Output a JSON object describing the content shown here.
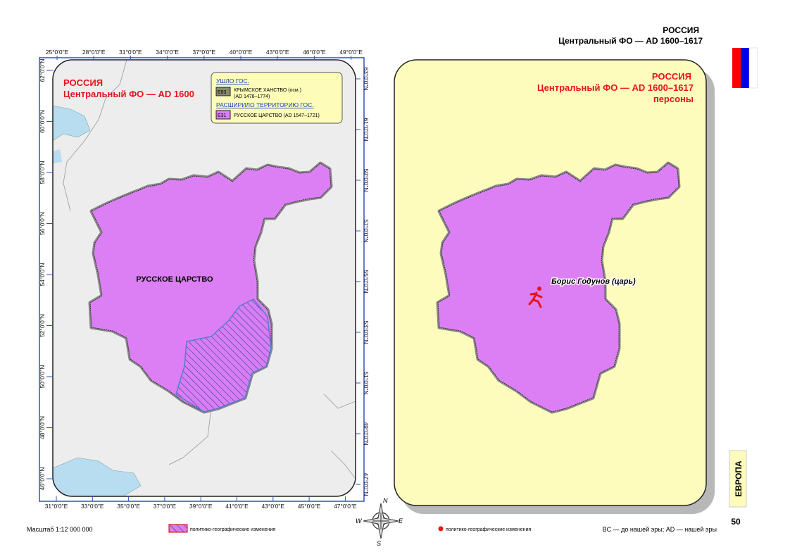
{
  "header": {
    "title": "РОССИЯ",
    "subtitle": "Центральный ФО — AD 1600–1617"
  },
  "left_map": {
    "title": "РОССИЯ",
    "subtitle": "Центральный ФО — AD 1600",
    "region_label": "РУССКОЕ ЦАРСТВО",
    "legend": {
      "lost_heading": "УШЛО ГОС.",
      "lost_code": "E83",
      "lost_name": "КРЫМСКОЕ ХАНСТВО (осм.)",
      "lost_years": "(AD 1478–1774)",
      "gained_heading": "РАСШИРИЛО ТЕРРИТОРИЮ ГОС.",
      "gained_code": "E31",
      "gained_name": "РУССКОЕ ЦАРСТВО (AD 1547–1721)"
    },
    "top_ticks": [
      "25°0'0\"E",
      "28°0'0\"E",
      "31°0'0\"E",
      "34°0'0\"E",
      "37°0'0\"E",
      "40°0'0\"E",
      "43°0'0\"E",
      "46°0'0\"E",
      "49°0'0\"E"
    ],
    "bottom_ticks": [
      "31°0'0\"E",
      "33°0'0\"E",
      "35°0'0\"E",
      "37°0'0\"E",
      "39°0'0\"E",
      "41°0'0\"E",
      "43°0'0\"E",
      "45°0'0\"E",
      "47°0'0\"E"
    ],
    "left_ticks": [
      "62°0'0\"N",
      "60°0'0\"N",
      "58°0'0\"N",
      "56°0'0\"N",
      "54°0'0\"N",
      "52°0'0\"N",
      "50°0'0\"N",
      "48°0'0\"N",
      "46°0'0\"N"
    ],
    "right_ticks": [
      "63°0'0\"N",
      "61°0'0\"N",
      "59°0'0\"N",
      "57°0'0\"N",
      "55°0'0\"N",
      "53°0'0\"N",
      "51°0'0\"N",
      "49°0'0\"N",
      "47°0'0\"N"
    ]
  },
  "right_map": {
    "title": "РОССИЯ",
    "subtitle": "Центральный ФО — AD 1600–1617",
    "subject": "персоны",
    "person": "Борис Годунов (царь)"
  },
  "compass": {
    "n": "N",
    "w": "W",
    "e": "E",
    "s": "S"
  },
  "footer": {
    "scale": "Масштаб 1:12 000 000",
    "hatch_note": "политико-географические изменения",
    "dot_note": "политико-географические изменения",
    "era_note": "BC — до нашей эры; AD — нашей эры",
    "continent": "ЕВРОПА",
    "page": "50"
  }
}
